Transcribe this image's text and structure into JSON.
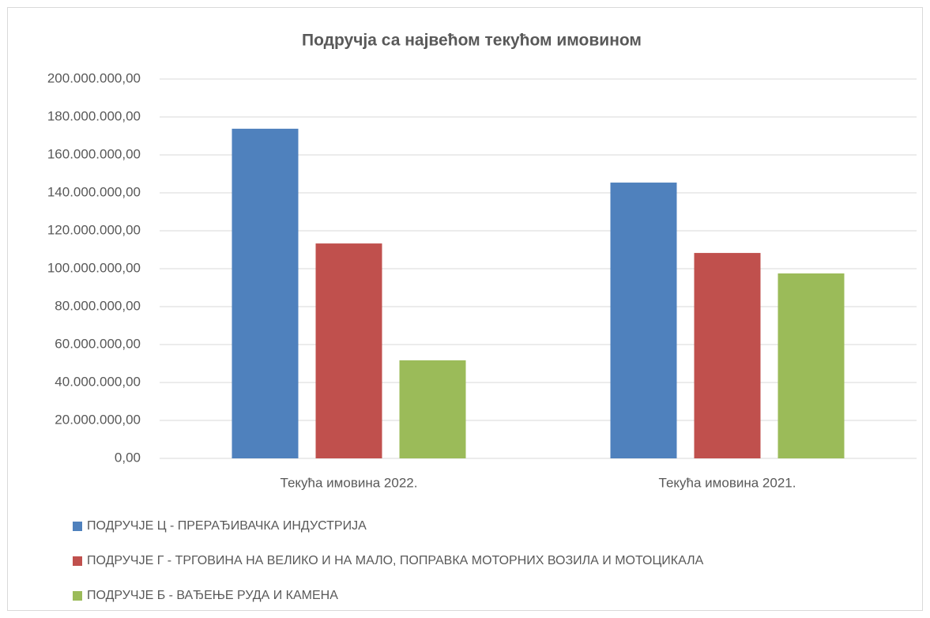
{
  "chart_data": {
    "type": "bar",
    "title": "Подручја са највећом текућом имовином",
    "categories": [
      "Текућа имовина 2022.",
      "Текућа имовина 2021."
    ],
    "series": [
      {
        "name": "ПОДРУЧЈЕ Ц - ПРЕРАЂИВАЧКА ИНДУСТРИЈА",
        "color": "#4f81bd",
        "values": [
          173800000,
          145400000
        ]
      },
      {
        "name": "ПОДРУЧЈЕ Г - ТРГОВИНА НА ВЕЛИКО И НА МАЛО, ПОПРАВКА МОТОРНИХ ВОЗИЛА И МОТОЦИКАЛА",
        "color": "#c0504d",
        "values": [
          113300000,
          108300000
        ]
      },
      {
        "name": "ПОДРУЧЈЕ Б - ВАЂЕЊЕ РУДА И КАМЕНА",
        "color": "#9bbb59",
        "values": [
          51700000,
          97500000
        ]
      }
    ],
    "ylim": [
      0,
      200000000
    ],
    "yticks": [
      {
        "value": 0,
        "label": "0,00"
      },
      {
        "value": 20000000,
        "label": "20.000.000,00"
      },
      {
        "value": 40000000,
        "label": "40.000.000,00"
      },
      {
        "value": 60000000,
        "label": "60.000.000,00"
      },
      {
        "value": 80000000,
        "label": "80.000.000,00"
      },
      {
        "value": 100000000,
        "label": "100.000.000,00"
      },
      {
        "value": 120000000,
        "label": "120.000.000,00"
      },
      {
        "value": 140000000,
        "label": "140.000.000,00"
      },
      {
        "value": 160000000,
        "label": "160.000.000,00"
      },
      {
        "value": 180000000,
        "label": "180.000.000,00"
      },
      {
        "value": 200000000,
        "label": "200.000.000,00"
      }
    ],
    "grid": true,
    "legend": "bottom"
  }
}
